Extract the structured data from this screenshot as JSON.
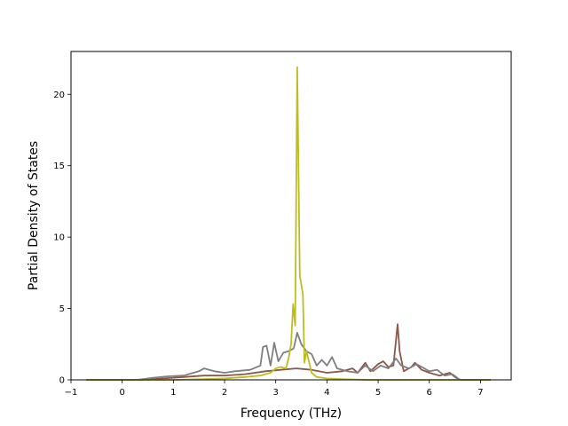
{
  "chart_data": {
    "type": "line",
    "title": "",
    "xlabel": "Frequency (THz)",
    "ylabel": "Partial Density of States",
    "xlim": [
      -1.0,
      7.6
    ],
    "ylim": [
      0,
      23
    ],
    "x_ticks": [
      -1,
      0,
      1,
      2,
      3,
      4,
      5,
      6,
      7
    ],
    "y_ticks": [
      0,
      5,
      10,
      15,
      20
    ],
    "grid": false,
    "legend": "none",
    "series": [
      {
        "color": "#8c564b",
        "points": [
          [
            -0.7,
            0
          ],
          [
            0.4,
            0
          ],
          [
            0.8,
            0.1
          ],
          [
            1.2,
            0.2
          ],
          [
            1.6,
            0.3
          ],
          [
            2.0,
            0.3
          ],
          [
            2.4,
            0.4
          ],
          [
            2.8,
            0.6
          ],
          [
            3.1,
            0.7
          ],
          [
            3.4,
            0.8
          ],
          [
            3.7,
            0.7
          ],
          [
            4.0,
            0.5
          ],
          [
            4.3,
            0.6
          ],
          [
            4.5,
            0.8
          ],
          [
            4.6,
            0.5
          ],
          [
            4.75,
            1.2
          ],
          [
            4.85,
            0.6
          ],
          [
            5.0,
            1.1
          ],
          [
            5.1,
            1.3
          ],
          [
            5.2,
            0.9
          ],
          [
            5.3,
            1.0
          ],
          [
            5.38,
            3.9
          ],
          [
            5.42,
            2.0
          ],
          [
            5.5,
            0.6
          ],
          [
            5.65,
            0.9
          ],
          [
            5.72,
            1.2
          ],
          [
            5.85,
            0.7
          ],
          [
            6.0,
            0.5
          ],
          [
            6.2,
            0.3
          ],
          [
            6.4,
            0.5
          ],
          [
            6.5,
            0.2
          ],
          [
            6.6,
            0
          ],
          [
            7.2,
            0
          ]
        ]
      },
      {
        "color": "#7f7f7f",
        "points": [
          [
            -0.7,
            0
          ],
          [
            0.3,
            0
          ],
          [
            0.6,
            0.15
          ],
          [
            0.9,
            0.25
          ],
          [
            1.2,
            0.3
          ],
          [
            1.5,
            0.6
          ],
          [
            1.6,
            0.8
          ],
          [
            1.8,
            0.6
          ],
          [
            2.0,
            0.5
          ],
          [
            2.2,
            0.6
          ],
          [
            2.5,
            0.7
          ],
          [
            2.7,
            1.0
          ],
          [
            2.75,
            2.3
          ],
          [
            2.82,
            2.4
          ],
          [
            2.9,
            1.0
          ],
          [
            2.97,
            2.6
          ],
          [
            3.05,
            1.3
          ],
          [
            3.15,
            1.9
          ],
          [
            3.25,
            2.0
          ],
          [
            3.35,
            2.2
          ],
          [
            3.42,
            3.3
          ],
          [
            3.5,
            2.5
          ],
          [
            3.6,
            2.0
          ],
          [
            3.7,
            1.8
          ],
          [
            3.8,
            1.0
          ],
          [
            3.9,
            1.4
          ],
          [
            4.0,
            1.0
          ],
          [
            4.1,
            1.6
          ],
          [
            4.2,
            0.8
          ],
          [
            4.4,
            0.6
          ],
          [
            4.6,
            0.5
          ],
          [
            4.75,
            1.0
          ],
          [
            4.9,
            0.6
          ],
          [
            5.05,
            1.0
          ],
          [
            5.2,
            0.8
          ],
          [
            5.35,
            1.5
          ],
          [
            5.45,
            1.0
          ],
          [
            5.6,
            0.8
          ],
          [
            5.75,
            1.1
          ],
          [
            5.9,
            0.8
          ],
          [
            6.0,
            0.6
          ],
          [
            6.15,
            0.7
          ],
          [
            6.3,
            0.3
          ],
          [
            6.45,
            0.4
          ],
          [
            6.6,
            0
          ],
          [
            7.2,
            0
          ]
        ]
      },
      {
        "color": "#bcbd22",
        "points": [
          [
            -0.7,
            0
          ],
          [
            1.0,
            0
          ],
          [
            1.6,
            0.05
          ],
          [
            2.0,
            0.1
          ],
          [
            2.4,
            0.2
          ],
          [
            2.7,
            0.3
          ],
          [
            2.9,
            0.5
          ],
          [
            3.0,
            0.8
          ],
          [
            3.1,
            0.9
          ],
          [
            3.2,
            0.8
          ],
          [
            3.25,
            1.5
          ],
          [
            3.3,
            2.5
          ],
          [
            3.34,
            5.3
          ],
          [
            3.38,
            3.8
          ],
          [
            3.42,
            21.9
          ],
          [
            3.47,
            7.3
          ],
          [
            3.53,
            6.0
          ],
          [
            3.56,
            1.2
          ],
          [
            3.6,
            2.0
          ],
          [
            3.7,
            0.5
          ],
          [
            3.8,
            0.2
          ],
          [
            4.0,
            0.1
          ],
          [
            4.3,
            0.05
          ],
          [
            4.8,
            0
          ],
          [
            7.2,
            0
          ]
        ]
      }
    ]
  }
}
